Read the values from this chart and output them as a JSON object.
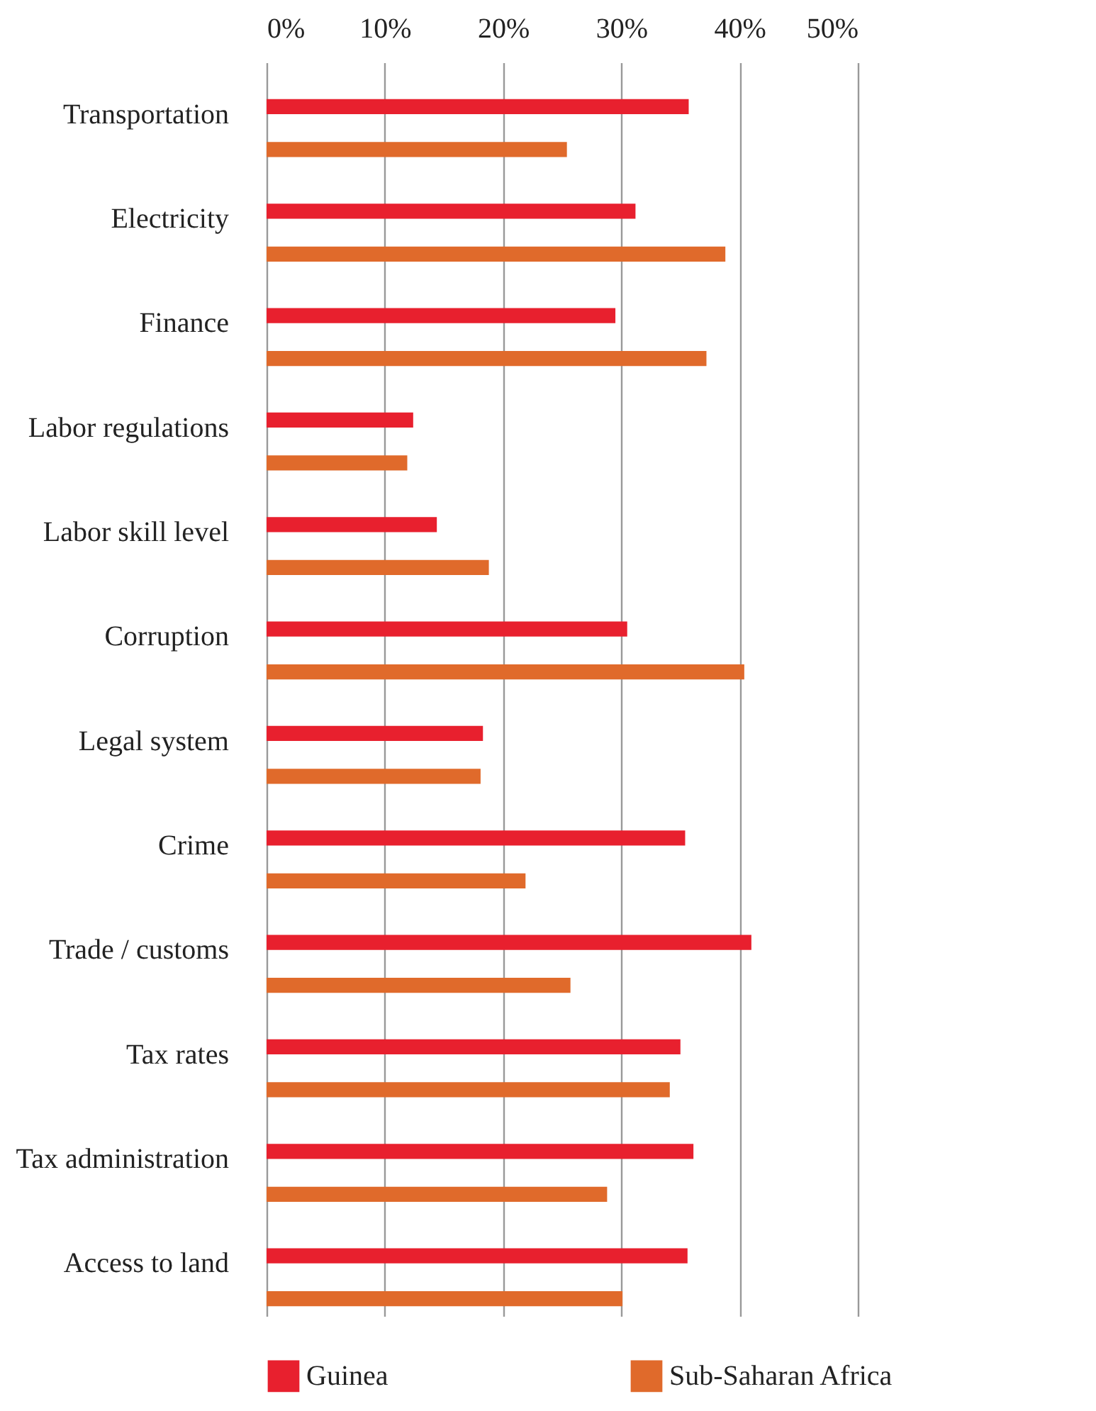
{
  "chart_data": {
    "type": "bar",
    "orientation": "horizontal",
    "categories": [
      "Transportation",
      "Electricity",
      "Finance",
      "Labor regulations",
      "Labor skill level",
      "Corruption",
      "Legal system",
      "Crime",
      "Trade / customs",
      "Tax rates",
      "Tax administration",
      "Access to land"
    ],
    "series": [
      {
        "name": "Guinea",
        "color": "#e8202e",
        "values": [
          35.7,
          31.2,
          29.5,
          12.4,
          14.4,
          30.5,
          18.3,
          35.4,
          41.0,
          35.0,
          36.1,
          35.6
        ]
      },
      {
        "name": "Sub-Saharan Africa",
        "color": "#e06a2b",
        "values": [
          25.4,
          38.8,
          37.2,
          11.9,
          18.8,
          40.4,
          18.1,
          21.9,
          25.7,
          34.1,
          28.8,
          30.1
        ]
      }
    ],
    "xlim": [
      0,
      50
    ],
    "xticks": [
      {
        "value": 0,
        "label": "0%"
      },
      {
        "value": 10,
        "label": "10%"
      },
      {
        "value": 20,
        "label": "20%"
      },
      {
        "value": 30,
        "label": "30%"
      },
      {
        "value": 40,
        "label": "40%"
      },
      {
        "value": 50,
        "label": "50%"
      }
    ],
    "grid": "x",
    "legend": "bottom"
  }
}
